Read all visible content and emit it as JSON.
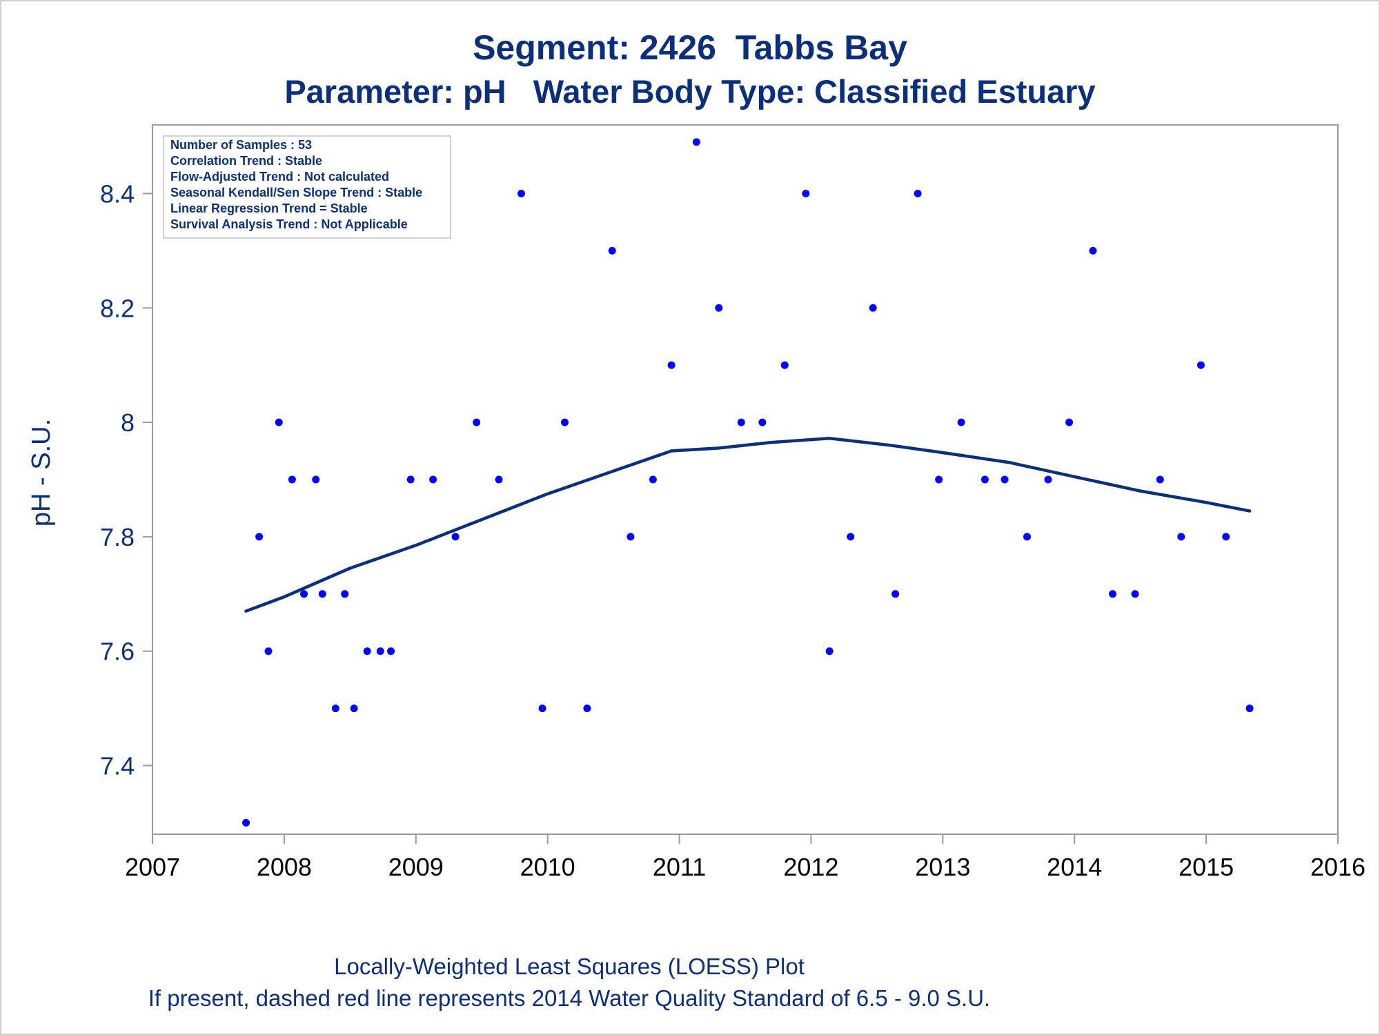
{
  "title": "Segment: 2426  Tabbs Bay",
  "subtitle": "Parameter: pH   Water Body Type: Classified Estuary",
  "footnotes": [
    "Locally-Weighted Least Squares (LOESS) Plot",
    "If present, dashed red line represents 2014 Water Quality Standard of 6.5 - 9.0 S.U."
  ],
  "info_box": [
    "Number of Samples : 53",
    "Correlation Trend : Stable",
    "Flow-Adjusted Trend : Not calculated",
    "Seasonal Kendall/Sen Slope Trend : Stable",
    "Linear Regression Trend = Stable",
    "Survival Analysis Trend : Not Applicable"
  ],
  "colors": {
    "text": "#0b2f7a",
    "points": "#0000ff",
    "loess_line": "#0b2f7a",
    "axis": "#9a9a9a",
    "tick_label": "#000000"
  },
  "chart_data": {
    "type": "scatter",
    "title": "Segment: 2426  Tabbs Bay",
    "subtitle": "Parameter: pH   Water Body Type: Classified Estuary",
    "xlabel": "",
    "ylabel": "pH - S.U.",
    "xlim": [
      2007,
      2016
    ],
    "ylim": [
      7.28,
      8.52
    ],
    "x_ticks": [
      "2007",
      "2008",
      "2009",
      "2010",
      "2011",
      "2012",
      "2013",
      "2014",
      "2015",
      "2016"
    ],
    "y_ticks": [
      "7.4",
      "7.6",
      "7.8",
      "8",
      "8.2",
      "8.4"
    ],
    "grid": false,
    "legend": "none",
    "points": [
      {
        "x": 2007.71,
        "y": 7.3
      },
      {
        "x": 2007.81,
        "y": 7.8
      },
      {
        "x": 2007.88,
        "y": 7.6
      },
      {
        "x": 2007.96,
        "y": 8.0
      },
      {
        "x": 2008.06,
        "y": 7.9
      },
      {
        "x": 2008.15,
        "y": 7.7
      },
      {
        "x": 2008.24,
        "y": 7.9
      },
      {
        "x": 2008.29,
        "y": 7.7
      },
      {
        "x": 2008.39,
        "y": 7.5
      },
      {
        "x": 2008.46,
        "y": 7.7
      },
      {
        "x": 2008.53,
        "y": 7.5
      },
      {
        "x": 2008.63,
        "y": 7.6
      },
      {
        "x": 2008.73,
        "y": 7.6
      },
      {
        "x": 2008.81,
        "y": 7.6
      },
      {
        "x": 2008.96,
        "y": 7.9
      },
      {
        "x": 2009.13,
        "y": 7.9
      },
      {
        "x": 2009.3,
        "y": 7.8
      },
      {
        "x": 2009.46,
        "y": 8.0
      },
      {
        "x": 2009.63,
        "y": 7.9
      },
      {
        "x": 2009.8,
        "y": 8.4
      },
      {
        "x": 2009.96,
        "y": 7.5
      },
      {
        "x": 2010.13,
        "y": 8.0
      },
      {
        "x": 2010.3,
        "y": 7.5
      },
      {
        "x": 2010.49,
        "y": 8.3
      },
      {
        "x": 2010.63,
        "y": 7.8
      },
      {
        "x": 2010.8,
        "y": 7.9
      },
      {
        "x": 2010.94,
        "y": 8.1
      },
      {
        "x": 2011.13,
        "y": 8.49
      },
      {
        "x": 2011.3,
        "y": 8.2
      },
      {
        "x": 2011.47,
        "y": 8.0
      },
      {
        "x": 2011.63,
        "y": 8.0
      },
      {
        "x": 2011.8,
        "y": 8.1
      },
      {
        "x": 2011.96,
        "y": 8.4
      },
      {
        "x": 2012.14,
        "y": 7.6
      },
      {
        "x": 2012.3,
        "y": 7.8
      },
      {
        "x": 2012.47,
        "y": 8.2
      },
      {
        "x": 2012.64,
        "y": 7.7
      },
      {
        "x": 2012.81,
        "y": 8.4
      },
      {
        "x": 2012.97,
        "y": 7.9
      },
      {
        "x": 2013.14,
        "y": 8.0
      },
      {
        "x": 2013.32,
        "y": 7.9
      },
      {
        "x": 2013.47,
        "y": 7.9
      },
      {
        "x": 2013.64,
        "y": 7.8
      },
      {
        "x": 2013.8,
        "y": 7.9
      },
      {
        "x": 2013.96,
        "y": 8.0
      },
      {
        "x": 2014.14,
        "y": 8.3
      },
      {
        "x": 2014.29,
        "y": 7.7
      },
      {
        "x": 2014.46,
        "y": 7.7
      },
      {
        "x": 2014.65,
        "y": 7.9
      },
      {
        "x": 2014.81,
        "y": 7.8
      },
      {
        "x": 2014.96,
        "y": 8.1
      },
      {
        "x": 2015.15,
        "y": 7.8
      },
      {
        "x": 2015.33,
        "y": 7.5
      }
    ],
    "loess_line": [
      {
        "x": 2007.71,
        "y": 7.67
      },
      {
        "x": 2008.0,
        "y": 7.695
      },
      {
        "x": 2008.5,
        "y": 7.745
      },
      {
        "x": 2009.0,
        "y": 7.785
      },
      {
        "x": 2009.5,
        "y": 7.83
      },
      {
        "x": 2010.0,
        "y": 7.875
      },
      {
        "x": 2010.5,
        "y": 7.915
      },
      {
        "x": 2010.94,
        "y": 7.95
      },
      {
        "x": 2011.3,
        "y": 7.955
      },
      {
        "x": 2011.7,
        "y": 7.965
      },
      {
        "x": 2012.14,
        "y": 7.972
      },
      {
        "x": 2012.6,
        "y": 7.96
      },
      {
        "x": 2013.0,
        "y": 7.947
      },
      {
        "x": 2013.5,
        "y": 7.93
      },
      {
        "x": 2014.0,
        "y": 7.905
      },
      {
        "x": 2014.5,
        "y": 7.88
      },
      {
        "x": 2015.0,
        "y": 7.86
      },
      {
        "x": 2015.33,
        "y": 7.845
      }
    ]
  }
}
